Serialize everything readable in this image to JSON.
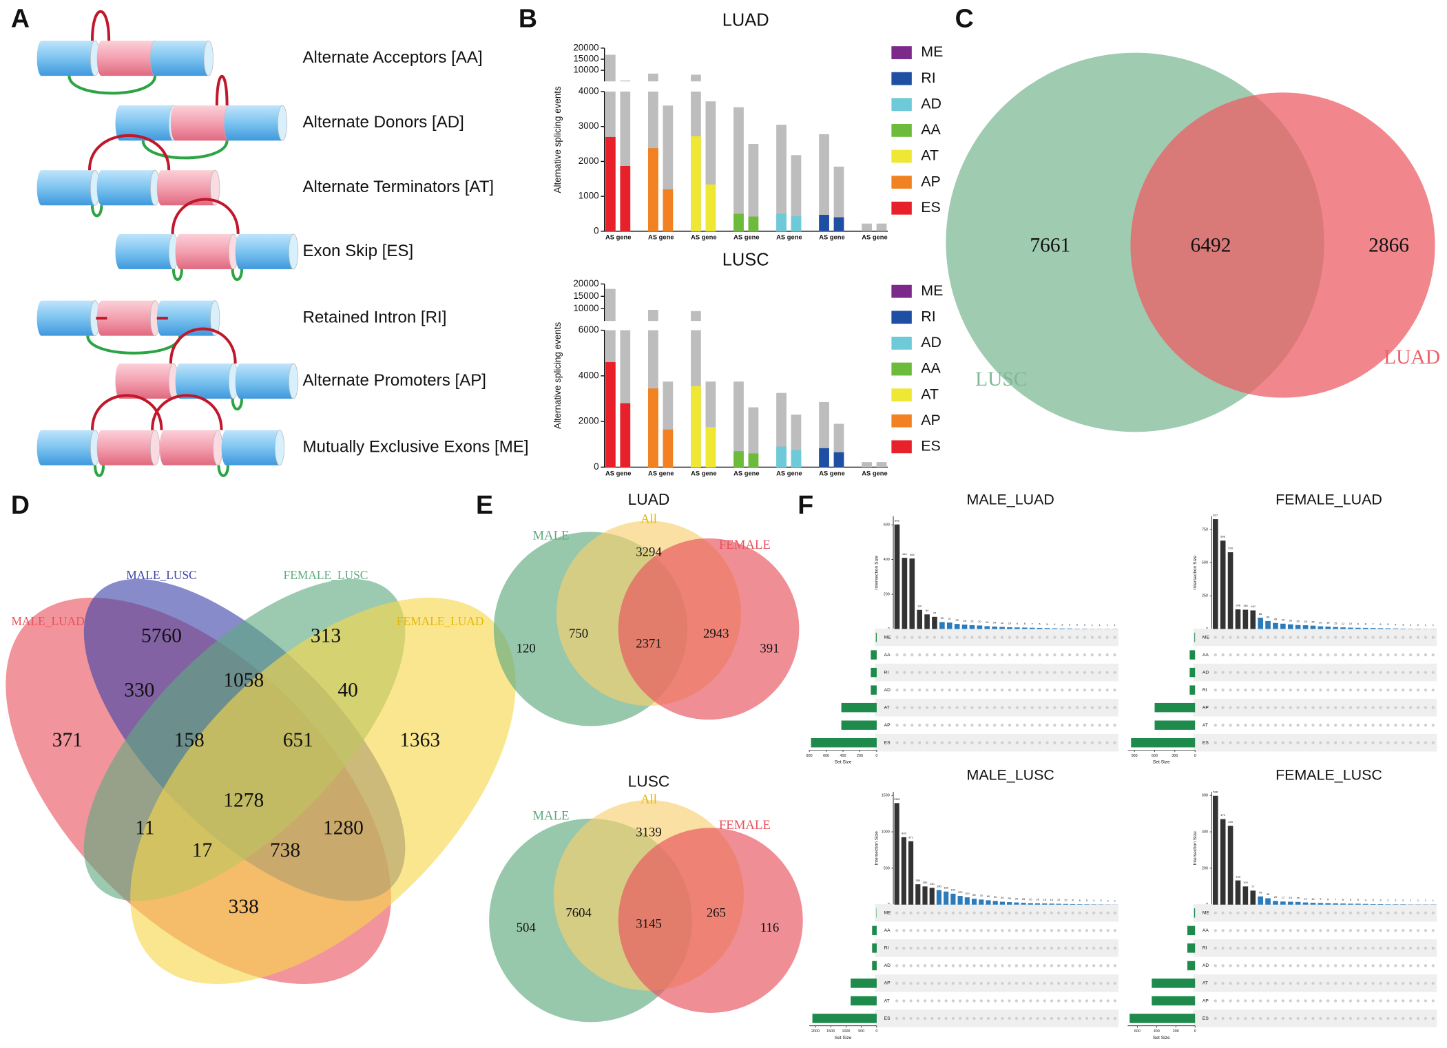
{
  "panel_labels": [
    "A",
    "B",
    "C",
    "D",
    "E",
    "F"
  ],
  "panel_a": {
    "events": [
      "Alternate Acceptors [AA]",
      "Alternate Donors [AD]",
      "Alternate Terminators [AT]",
      "Exon Skip [ES]",
      "Retained Intron [RI]",
      "Alternate Promoters [AP]",
      "Mutually Exclusive Exons [ME]"
    ]
  },
  "chart_data": [
    {
      "type": "bar",
      "title": "LUAD",
      "y_label": "Alternative splicing events",
      "x_label": "AS gene",
      "ylim": [
        0,
        4000
      ],
      "yticks": [
        0,
        1000,
        2000,
        3000,
        4000
      ],
      "ylim_upper": [
        5000,
        20000
      ],
      "yticks_upper": [
        10000,
        15000,
        20000
      ],
      "total_color": "#bdbdbd",
      "series": [
        {
          "name": "ME",
          "color": "#7b2a8c",
          "values": [
            10,
            10
          ],
          "totals": [
            220,
            220
          ]
        },
        {
          "name": "RI",
          "color": "#1f4fa3",
          "values": [
            470,
            400
          ],
          "totals": [
            2780,
            1850
          ]
        },
        {
          "name": "AD",
          "color": "#6ecad9",
          "values": [
            500,
            430
          ],
          "totals": [
            3050,
            2180
          ]
        },
        {
          "name": "AA",
          "color": "#6dbb3b",
          "values": [
            500,
            420
          ],
          "totals": [
            3550,
            2500
          ]
        },
        {
          "name": "AT",
          "color": "#eee834",
          "values": [
            2720,
            1340
          ],
          "totals": [
            8000,
            3720
          ]
        },
        {
          "name": "AP",
          "color": "#f28221",
          "values": [
            2380,
            1200
          ],
          "totals": [
            8500,
            3600
          ]
        },
        {
          "name": "ES",
          "color": "#e8202a",
          "values": [
            2700,
            1870
          ],
          "totals": [
            17000,
            4100
          ]
        }
      ]
    },
    {
      "type": "bar",
      "title": "LUSC",
      "y_label": "Alternative splicing events",
      "x_label": "AS gene",
      "ylim": [
        0,
        6000
      ],
      "yticks": [
        0,
        2000,
        4000,
        6000
      ],
      "ylim_upper": [
        5000,
        20000
      ],
      "yticks_upper": [
        10000,
        15000,
        20000
      ],
      "total_color": "#bdbdbd",
      "series": [
        {
          "name": "ME",
          "color": "#7b2a8c",
          "values": [
            10,
            10
          ],
          "totals": [
            220,
            220
          ]
        },
        {
          "name": "RI",
          "color": "#1f4fa3",
          "values": [
            830,
            650
          ],
          "totals": [
            2850,
            1900
          ]
        },
        {
          "name": "AD",
          "color": "#6ecad9",
          "values": [
            900,
            750
          ],
          "totals": [
            3250,
            2300
          ]
        },
        {
          "name": "AA",
          "color": "#6dbb3b",
          "values": [
            700,
            600
          ],
          "totals": [
            3750,
            2620
          ]
        },
        {
          "name": "AT",
          "color": "#eee834",
          "values": [
            3550,
            1750
          ],
          "totals": [
            9000,
            3750
          ]
        },
        {
          "name": "AP",
          "color": "#f28221",
          "values": [
            3450,
            1650
          ],
          "totals": [
            9500,
            3750
          ]
        },
        {
          "name": "ES",
          "color": "#e8202a",
          "values": [
            4600,
            2800
          ],
          "totals": [
            18000,
            6000
          ]
        }
      ]
    },
    {
      "type": "venn",
      "sets": [
        {
          "name": "LUSC",
          "color": "#7fb996"
        },
        {
          "name": "LUAD",
          "color": "#ec5f67"
        }
      ],
      "values": [
        7661,
        6492,
        2866
      ]
    },
    {
      "type": "venn",
      "sets": [
        {
          "name": "MALE_LUAD",
          "color": "#e8525d"
        },
        {
          "name": "MALE_LUSC",
          "color": "#3d44a8"
        },
        {
          "name": "FEMALE_LUSC",
          "color": "#5faa80"
        },
        {
          "name": "FEMALE_LUAD",
          "color": "#f7d64a"
        }
      ],
      "values": [
        371,
        5760,
        313,
        1363,
        330,
        1058,
        40,
        158,
        651,
        1278,
        11,
        17,
        738,
        1280,
        338
      ]
    },
    {
      "type": "venn",
      "title": "LUAD",
      "sets": [
        {
          "name": "MALE",
          "color": "#5faa80"
        },
        {
          "name": "All",
          "color": "#f7d070"
        },
        {
          "name": "FEMALE",
          "color": "#e8525d"
        }
      ],
      "values": [
        120,
        750,
        3294,
        2371,
        2943,
        391
      ]
    },
    {
      "type": "venn",
      "title": "LUSC",
      "sets": [
        {
          "name": "MALE",
          "color": "#5faa80"
        },
        {
          "name": "All",
          "color": "#f7d070"
        },
        {
          "name": "FEMALE",
          "color": "#e8525d"
        }
      ],
      "values": [
        504,
        7604,
        3139,
        3145,
        265,
        116
      ]
    },
    {
      "type": "upset",
      "title": "MALE_LUAD",
      "y_label": "Intersection Size",
      "x_label": "Set Size",
      "color": "#333333",
      "set_color": "#1e8a4c",
      "ylim": [
        0,
        650
      ],
      "yticks": [
        0,
        200,
        400,
        600
      ],
      "values": [
        602,
        410,
        406,
        110,
        84,
        70,
        40,
        37,
        29,
        25,
        22,
        20,
        16,
        14,
        12,
        10,
        9,
        8,
        7,
        6,
        5,
        4,
        3,
        3,
        2,
        2,
        1,
        1,
        1,
        1
      ],
      "sets": [
        "ME",
        "AA",
        "RI",
        "AD",
        "AT",
        "AP",
        "ES"
      ],
      "set_sizes": [
        10,
        70,
        70,
        70,
        420,
        420,
        780
      ],
      "xlim": [
        800,
        0
      ],
      "xticks": [
        800,
        600,
        400,
        200,
        0
      ]
    },
    {
      "type": "upset",
      "title": "FEMALE_LUAD",
      "y_label": "Intersection Size",
      "x_label": "Set Size",
      "color": "#333333",
      "set_color": "#1e8a4c",
      "ylim": [
        0,
        850
      ],
      "yticks": [
        0,
        250,
        500,
        750
      ],
      "values": [
        827,
        666,
        578,
        148,
        145,
        140,
        85,
        60,
        45,
        40,
        35,
        30,
        28,
        25,
        20,
        18,
        15,
        12,
        10,
        9,
        8,
        7,
        6,
        5,
        4,
        3,
        2,
        2,
        1,
        1
      ],
      "sets": [
        "ME",
        "AA",
        "AD",
        "RI",
        "AP",
        "AT",
        "ES"
      ],
      "set_sizes": [
        10,
        80,
        80,
        80,
        600,
        600,
        950
      ],
      "xlim": [
        1000,
        0
      ],
      "xticks": [
        900,
        600,
        300,
        0
      ]
    },
    {
      "type": "upset",
      "title": "MALE_LUSC",
      "y_label": "Intersection Size",
      "x_label": "Set Size",
      "color": "#333333",
      "set_color": "#1e8a4c",
      "ylim": [
        0,
        1550
      ],
      "yticks": [
        0,
        500,
        1000,
        1500
      ],
      "values": [
        1395,
        926,
        871,
        280,
        250,
        230,
        200,
        180,
        150,
        120,
        100,
        80,
        70,
        60,
        50,
        40,
        35,
        30,
        25,
        20,
        18,
        16,
        14,
        12,
        10,
        8,
        6,
        5,
        4,
        3,
        2,
        1
      ],
      "sets": [
        "ME",
        "AA",
        "RI",
        "AD",
        "AP",
        "AT",
        "ES"
      ],
      "set_sizes": [
        10,
        150,
        150,
        150,
        850,
        850,
        2100
      ],
      "xlim": [
        2200,
        0
      ],
      "xticks": [
        2000,
        1500,
        1000,
        500,
        0
      ]
    },
    {
      "type": "upset",
      "title": "FEMALE_LUSC",
      "y_label": "Intersection Size",
      "x_label": "Set Size",
      "color": "#333333",
      "set_color": "#1e8a4c",
      "ylim": [
        0,
        620
      ],
      "yticks": [
        0,
        200,
        400,
        600
      ],
      "values": [
        598,
        470,
        433,
        133,
        100,
        77,
        45,
        35,
        20,
        17,
        16,
        15,
        12,
        10,
        9,
        8,
        7,
        6,
        5,
        5,
        4,
        3,
        3,
        2,
        2,
        2,
        1,
        1,
        1,
        1
      ],
      "sets": [
        "ME",
        "AA",
        "RI",
        "AD",
        "AT",
        "AP",
        "ES"
      ],
      "set_sizes": [
        10,
        80,
        80,
        80,
        450,
        450,
        680
      ],
      "xlim": [
        700,
        0
      ],
      "xticks": [
        600,
        400,
        200,
        0
      ]
    }
  ]
}
